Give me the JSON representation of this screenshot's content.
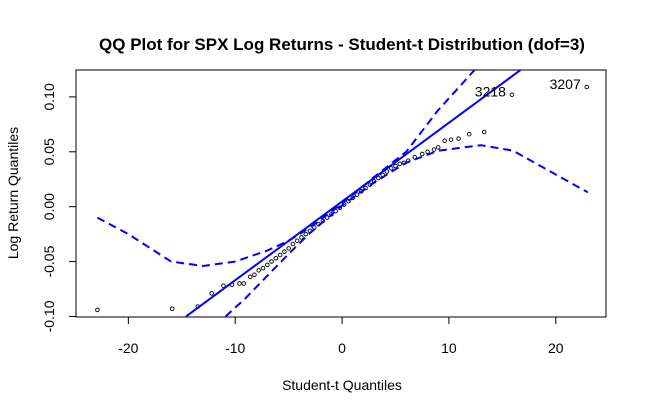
{
  "chart_data": {
    "type": "scatter",
    "title": "QQ Plot for SPX Log Returns - Student-t Distribution (dof=3)",
    "x_label": "Student-t Quantiles",
    "y_label": "Log Return Quantiles",
    "xlim": [
      -24.9,
      24.7
    ],
    "ylim": [
      -0.1005,
      0.1245
    ],
    "xticks": [
      -20,
      -10,
      0,
      10,
      20
    ],
    "yticks": [
      {
        "value": -0.1,
        "label": "-0.10"
      },
      -0.05,
      {
        "value": 0,
        "label": "0.00"
      },
      0.05,
      {
        "value": 0.1,
        "label": "0.10"
      }
    ],
    "grid": false,
    "series": [
      {
        "type": "scatter",
        "color": "#000000",
        "x": [
          -22.9,
          -15.9,
          -13.5,
          -12.2,
          -11.1,
          -10.3,
          -9.6,
          -9.2,
          -8.6,
          -8.2,
          -7.8,
          -7.4,
          -7.0,
          -6.6,
          -6.2,
          -5.8,
          -5.4,
          -5.0,
          -4.6,
          -4.2,
          -3.8,
          -3.4,
          -3.0,
          -2.6,
          -2.2,
          -1.8,
          -1.4,
          -1.0,
          -0.6,
          -0.2,
          0.2,
          0.6,
          1.0,
          1.4,
          1.8,
          2.2,
          2.6,
          3.0,
          3.4,
          3.8,
          4.2,
          4.6,
          5.0,
          5.4,
          5.8,
          6.2,
          6.8,
          7.5,
          8.0,
          8.6,
          9.0,
          9.6,
          10.2,
          10.9,
          11.9,
          13.3,
          15.9,
          22.9
        ],
        "values": [
          -0.094,
          -0.093,
          -0.091,
          -0.079,
          -0.072,
          -0.071,
          -0.07,
          -0.07,
          -0.064,
          -0.062,
          -0.058,
          -0.056,
          -0.053,
          -0.05,
          -0.047,
          -0.044,
          -0.041,
          -0.038,
          -0.034,
          -0.031,
          -0.028,
          -0.025,
          -0.022,
          -0.019,
          -0.016,
          -0.013,
          -0.01,
          -0.007,
          -0.004,
          -0.001,
          0.002,
          0.005,
          0.008,
          0.011,
          0.014,
          0.017,
          0.02,
          0.023,
          0.026,
          0.029,
          0.032,
          0.035,
          0.037,
          0.039,
          0.04,
          0.042,
          0.045,
          0.048,
          0.05,
          0.052,
          0.054,
          0.06,
          0.061,
          0.062,
          0.066,
          0.068,
          0.102,
          0.109
        ],
        "point_labels": [
          null,
          null,
          null,
          null,
          null,
          null,
          null,
          null,
          null,
          null,
          null,
          null,
          null,
          null,
          null,
          null,
          null,
          null,
          null,
          null,
          null,
          null,
          null,
          null,
          null,
          null,
          null,
          null,
          null,
          null,
          null,
          null,
          null,
          null,
          null,
          null,
          null,
          null,
          null,
          null,
          null,
          null,
          null,
          null,
          null,
          null,
          null,
          null,
          null,
          null,
          null,
          null,
          null,
          null,
          null,
          null,
          "3218",
          "3207"
        ]
      },
      {
        "type": "line",
        "color": "#0000ff",
        "dashed": false,
        "x": [
          -14.6,
          16.7
        ],
        "values": [
          -0.1,
          0.1245
        ]
      },
      {
        "type": "line",
        "color": "#0000ff",
        "dashed": true,
        "x": [
          -22.9,
          -20,
          -16,
          -13,
          -10,
          -7,
          -5,
          -3,
          0,
          3,
          6,
          9,
          12.4
        ],
        "values": [
          -0.01,
          -0.025,
          -0.05,
          -0.054,
          -0.05,
          -0.04,
          -0.031,
          -0.019,
          0.003,
          0.027,
          0.05,
          0.088,
          0.1245
        ]
      },
      {
        "type": "line",
        "color": "#0000ff",
        "dashed": true,
        "x": [
          -10.9,
          -9,
          -7,
          -5,
          -3,
          0,
          3,
          6,
          9,
          13,
          16,
          23
        ],
        "values": [
          -0.1,
          -0.083,
          -0.063,
          -0.043,
          -0.024,
          0.001,
          0.022,
          0.04,
          0.051,
          0.056,
          0.051,
          0.013
        ]
      }
    ]
  }
}
